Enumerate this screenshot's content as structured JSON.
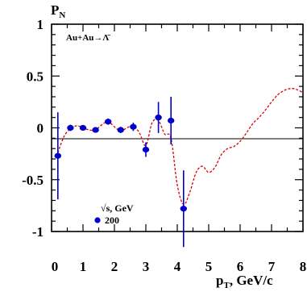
{
  "chart_data": {
    "type": "scatter",
    "ylabel_main": "P",
    "ylabel_sub": "N",
    "xlabel_main": "p",
    "xlabel_sub": "T",
    "xlabel_unit": ", GeV/c",
    "annotation": "Au+Au→Λ̄",
    "legend_title": "√s, GeV",
    "legend_entry": "200",
    "xlim": [
      0,
      8
    ],
    "ylim": [
      -1,
      1
    ],
    "x_ticks": [
      "0",
      "1",
      "2",
      "3",
      "4",
      "5",
      "6",
      "7",
      "8"
    ],
    "y_ticks": [
      "1",
      "0.5",
      "0",
      "-0.5",
      "-1"
    ],
    "y_tick_values": [
      1,
      0.5,
      0,
      -0.5,
      -1
    ],
    "series": [
      {
        "name": "200",
        "type": "scatter",
        "color": "#0000cc",
        "x": [
          0.2,
          0.6,
          1.0,
          1.4,
          1.8,
          2.2,
          2.6,
          3.0,
          3.4,
          3.8,
          4.2
        ],
        "y": [
          -0.27,
          0.0,
          0.0,
          -0.02,
          0.06,
          -0.02,
          0.01,
          -0.21,
          0.1,
          0.07,
          -0.78
        ],
        "err": [
          0.42,
          0.03,
          0.02,
          0.02,
          0.03,
          0.03,
          0.04,
          0.07,
          0.15,
          0.23,
          0.37
        ]
      },
      {
        "type": "line",
        "style": "dashed",
        "color": "#dd0000",
        "x": [
          0.2,
          0.4,
          0.6,
          0.8,
          1.0,
          1.2,
          1.4,
          1.6,
          1.8,
          2.0,
          2.2,
          2.4,
          2.6,
          2.8,
          3.0,
          3.2,
          3.4,
          3.6,
          3.8,
          4.0,
          4.2,
          4.4,
          4.6,
          4.8,
          5.0,
          5.2,
          5.4,
          5.6,
          5.8,
          6.0,
          6.2,
          6.4,
          6.6,
          6.8,
          7.0,
          7.2,
          7.4,
          7.6,
          7.8,
          8.0
        ],
        "y": [
          -0.24,
          -0.08,
          -0.01,
          0.02,
          0.0,
          -0.02,
          -0.02,
          0.03,
          0.06,
          0.01,
          -0.03,
          0.0,
          0.02,
          -0.05,
          -0.17,
          0.05,
          0.07,
          -0.06,
          -0.1,
          -0.55,
          -0.74,
          -0.62,
          -0.43,
          -0.37,
          -0.43,
          -0.38,
          -0.26,
          -0.2,
          -0.18,
          -0.13,
          -0.05,
          0.04,
          0.1,
          0.17,
          0.25,
          0.32,
          0.36,
          0.38,
          0.37,
          0.34
        ]
      }
    ]
  }
}
